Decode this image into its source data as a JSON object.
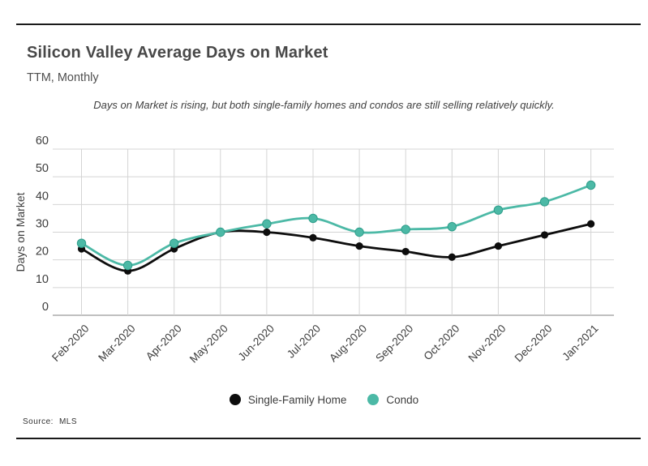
{
  "page": {
    "title": "Silicon Valley Average Days on Market",
    "subtitle": "TTM, Monthly",
    "annotation": "Days on Market is rising, but both single-family homes and condos are still selling relatively quickly.",
    "source_label": "Source:",
    "source_value": "MLS"
  },
  "colors": {
    "single_family": "#0d0d0d",
    "condo": "#4cb9a6",
    "condo_edge": "#2f9e8b",
    "grid": "#d4d4d4",
    "baseline": "#9b9b9b",
    "axis_text": "#3d3d3d",
    "divider": "#1a1a1a"
  },
  "chart_data": {
    "type": "line",
    "title": "Silicon Valley Average Days on Market",
    "subtitle": "TTM, Monthly",
    "annotation": "Days on Market is rising, but both single-family homes and condos are still selling relatively quickly.",
    "categories": [
      "Feb-2020",
      "Mar-2020",
      "Apr-2020",
      "May-2020",
      "Jun-2020",
      "Jul-2020",
      "Aug-2020",
      "Sep-2020",
      "Oct-2020",
      "Nov-2020",
      "Dec-2020",
      "Jan-2021"
    ],
    "series": [
      {
        "name": "Single-Family Home",
        "color": "#0d0d0d",
        "values": [
          24,
          16,
          24,
          30,
          30,
          28,
          25,
          23,
          21,
          25,
          29,
          33
        ]
      },
      {
        "name": "Condo",
        "color": "#4cb9a6",
        "values": [
          26,
          18,
          26,
          30,
          33,
          35,
          30,
          31,
          32,
          38,
          41,
          47
        ]
      }
    ],
    "xlabel": "",
    "ylabel": "Days on Market",
    "ylim": [
      0,
      60
    ],
    "ytick_step": 10,
    "grid": true,
    "legend_position": "bottom",
    "source": "Source: MLS"
  }
}
